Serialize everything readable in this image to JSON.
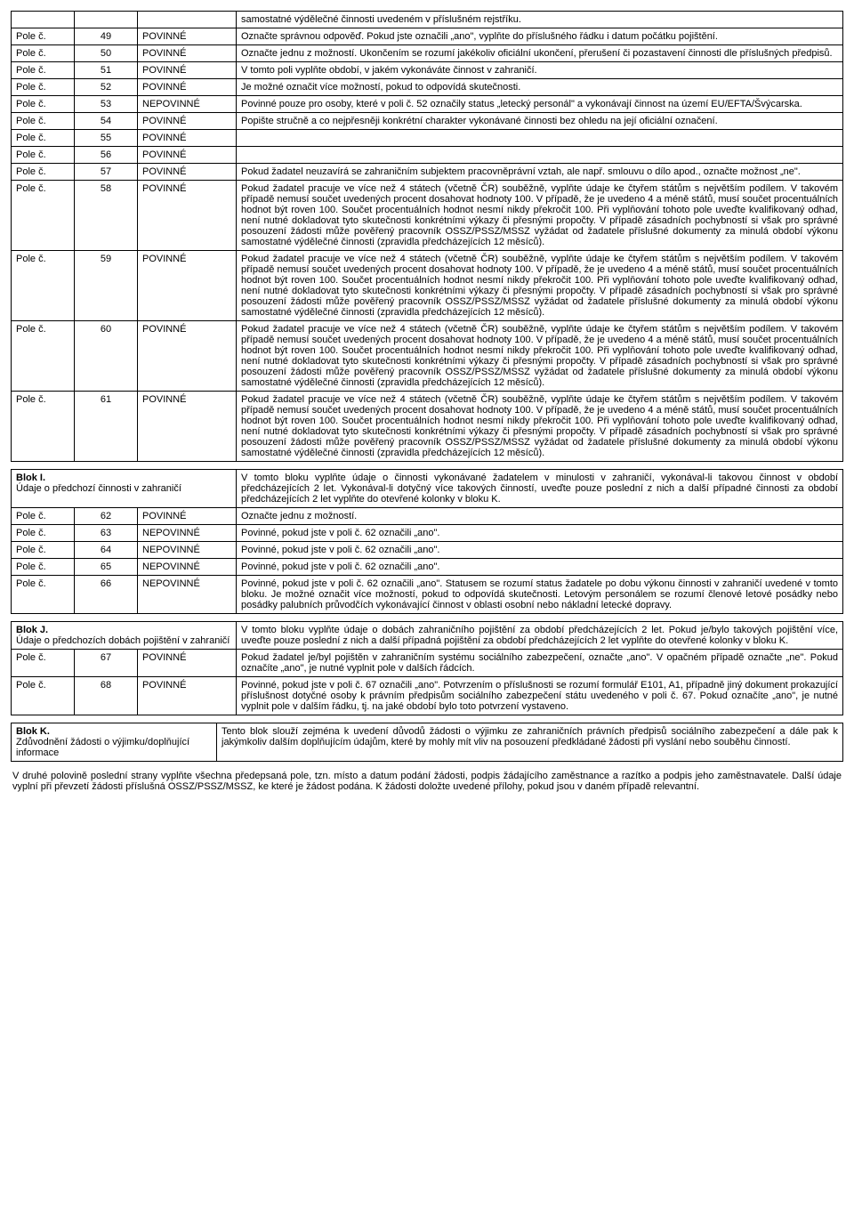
{
  "t1": {
    "rows": [
      {
        "a": "",
        "b": "",
        "c": "",
        "d": "samostatné výdělečné činnosti uvedeném v příslušném rejstříku."
      },
      {
        "a": "Pole č.",
        "b": "49",
        "c": "POVINNÉ",
        "d": "Označte správnou odpověď. Pokud jste označili „ano\", vyplňte do příslušného řádku i datum počátku pojištění."
      },
      {
        "a": "Pole č.",
        "b": "50",
        "c": "POVINNÉ",
        "d": "Označte jednu z možností. Ukončením se rozumí jakékoliv oficiální ukončení, přerušení či pozastavení činnosti dle příslušných předpisů."
      },
      {
        "a": "Pole č.",
        "b": "51",
        "c": "POVINNÉ",
        "d": "V tomto poli vyplňte období, v jakém vykonáváte činnost v zahraničí."
      },
      {
        "a": "Pole č.",
        "b": "52",
        "c": "POVINNÉ",
        "d": "Je možné označit více možností, pokud to odpovídá skutečnosti."
      },
      {
        "a": "Pole č.",
        "b": "53",
        "c": "NEPOVINNÉ",
        "d": "Povinné pouze pro osoby, které v poli č. 52 označily status „letecký personál\" a vykonávají činnost na území EU/EFTA/Švýcarska."
      },
      {
        "a": "Pole č.",
        "b": "54",
        "c": "POVINNÉ",
        "d": "Popište stručně a co nejpřesněji konkrétní charakter vykonávané činnosti bez ohledu na její oficiální označení."
      },
      {
        "a": "Pole č.",
        "b": "55",
        "c": "POVINNÉ",
        "d": ""
      },
      {
        "a": "Pole č.",
        "b": "56",
        "c": "POVINNÉ",
        "d": ""
      },
      {
        "a": "Pole č.",
        "b": "57",
        "c": "POVINNÉ",
        "d": "Pokud žadatel neuzavírá se zahraničním subjektem pracovněprávní vztah, ale např. smlouvu o dílo apod., označte možnost „ne\"."
      },
      {
        "a": "Pole č.",
        "b": "58",
        "c": "POVINNÉ",
        "d": "Pokud žadatel pracuje ve více než 4 státech (včetně ČR) souběžně, vyplňte údaje ke čtyřem státům s největším podílem. V takovém případě nemusí součet uvedených procent dosahovat hodnoty 100. V případě, že je uvedeno 4 a méně států, musí součet procentuálních hodnot být roven 100. Součet procentuálních hodnot nesmí nikdy překročit 100. Při vyplňování tohoto pole uveďte kvalifikovaný odhad, není nutné dokladovat tyto skutečnosti konkrétními výkazy či přesnými propočty. V případě zásadních pochybností si však pro správné posouzení žádosti může pověřený pracovník OSSZ/PSSZ/MSSZ vyžádat od žadatele příslušné dokumenty za minulá období výkonu samostatné výdělečné činnosti (zpravidla předcházejících 12 měsíců)."
      },
      {
        "a": "Pole č.",
        "b": "59",
        "c": "POVINNÉ",
        "d": "Pokud žadatel pracuje ve více než 4 státech (včetně ČR) souběžně, vyplňte údaje ke čtyřem státům s největším podílem. V takovém případě nemusí součet uvedených procent dosahovat hodnoty 100. V případě, že je uvedeno 4 a méně států, musí součet procentuálních hodnot být roven 100. Součet procentuálních hodnot nesmí nikdy překročit 100. Při vyplňování tohoto pole uveďte kvalifikovaný odhad, není nutné dokladovat tyto skutečnosti konkrétními výkazy či přesnými propočty. V případě zásadních pochybností si však pro správné posouzení žádosti může pověřený pracovník OSSZ/PSSZ/MSSZ vyžádat od žadatele příslušné dokumenty za minulá období výkonu samostatné výdělečné činnosti (zpravidla předcházejících 12 měsíců)."
      },
      {
        "a": "Pole č.",
        "b": "60",
        "c": "POVINNÉ",
        "d": "Pokud žadatel pracuje ve více než 4 státech (včetně ČR) souběžně, vyplňte údaje ke čtyřem státům s největším podílem. V takovém případě nemusí součet uvedených procent dosahovat hodnoty 100. V případě, že je uvedeno 4 a méně států, musí součet procentuálních hodnot být roven 100. Součet procentuálních hodnot nesmí nikdy překročit 100. Při vyplňování tohoto pole uveďte kvalifikovaný odhad, není nutné dokladovat tyto skutečnosti konkrétními výkazy či přesnými propočty. V případě zásadních pochybností si však pro správné posouzení žádosti může pověřený pracovník OSSZ/PSSZ/MSSZ vyžádat od žadatele příslušné dokumenty za minulá období výkonu samostatné výdělečné činnosti (zpravidla předcházejících 12 měsíců)."
      },
      {
        "a": "Pole č.",
        "b": "61",
        "c": "POVINNÉ",
        "d": "Pokud žadatel pracuje ve více než 4 státech (včetně ČR) souběžně, vyplňte údaje ke čtyřem státům s největším podílem. V takovém případě nemusí součet uvedených procent dosahovat hodnoty 100. V případě, že je uvedeno 4 a méně států, musí součet procentuálních hodnot být roven 100. Součet procentuálních hodnot nesmí nikdy překročit 100. Při vyplňování tohoto pole uveďte kvalifikovaný odhad, není nutné dokladovat tyto skutečnosti konkrétními výkazy či přesnými propočty. V případě zásadních pochybností si však pro správné posouzení žádosti může pověřený pracovník OSSZ/PSSZ/MSSZ vyžádat od žadatele příslušné dokumenty za minulá období výkonu samostatné výdělečné činnosti (zpravidla předcházejících 12 měsíců)."
      }
    ]
  },
  "t2": {
    "head_title": "Blok I.",
    "head_sub": "Údaje o předchozí činnosti v zahraničí",
    "head_desc": "V tomto bloku vyplňte údaje o činnosti vykonávané žadatelem v minulosti v zahraničí, vykonával-li takovou činnost v období předcházejících 2 let. Vykonával-li dotyčný více takových činností, uveďte pouze poslední z nich a další případné činnosti za období předcházejících 2 let vyplňte do otevřené kolonky v bloku K.",
    "rows": [
      {
        "a": "Pole č.",
        "b": "62",
        "c": "POVINNÉ",
        "d": "Označte jednu z možností."
      },
      {
        "a": "Pole č.",
        "b": "63",
        "c": "NEPOVINNÉ",
        "d": "Povinné, pokud jste v poli č. 62 označili „ano\"."
      },
      {
        "a": "Pole č.",
        "b": "64",
        "c": "NEPOVINNÉ",
        "d": "Povinné, pokud jste v poli č. 62 označili „ano\"."
      },
      {
        "a": "Pole č.",
        "b": "65",
        "c": "NEPOVINNÉ",
        "d": "Povinné, pokud jste v poli č. 62 označili „ano\"."
      },
      {
        "a": "Pole č.",
        "b": "66",
        "c": "NEPOVINNÉ",
        "d": "Povinné, pokud jste v poli č. 62 označili „ano\". Statusem se rozumí status žadatele po dobu výkonu činnosti v zahraničí uvedené v tomto bloku. Je možné označit více možností, pokud to odpovídá skutečnosti. Letovým personálem se rozumí členové letové posádky nebo posádky palubních průvodčích vykonávající činnost v oblasti osobní nebo nákladní letecké dopravy."
      }
    ]
  },
  "t3": {
    "head_title": "Blok J.",
    "head_sub": "Údaje o předchozích dobách pojištění v zahraničí",
    "head_desc": "V tomto bloku vyplňte údaje o dobách zahraničního pojištění za období předcházejících 2 let. Pokud je/bylo takových pojištění více, uveďte pouze poslední z nich a další případná pojištění za období předcházejících 2 let vyplňte do otevřené kolonky v bloku K.",
    "rows": [
      {
        "a": "Pole č.",
        "b": "67",
        "c": "POVINNÉ",
        "d": "Pokud žadatel je/byl pojištěn v zahraničním systému sociálního zabezpečení, označte „ano\". V opačném případě označte „ne\". Pokud označíte „ano\", je nutné vyplnit pole v dalších řádcích."
      },
      {
        "a": "Pole č.",
        "b": "68",
        "c": "POVINNÉ",
        "d": "Povinné, pokud jste v poli č. 67 označili „ano\". Potvrzením o příslušnosti se rozumí formulář E101, A1, případně jiný dokument prokazující příslušnost dotyčné osoby k právním předpisům sociálního zabezpečení státu uvedeného v poli č. 67. Pokud označíte „ano\", je nutné vyplnit pole v dalším řádku, tj. na jaké období bylo toto potvrzení vystaveno."
      }
    ]
  },
  "t4": {
    "head_title": "Blok K.",
    "head_sub": "Zdůvodnění žádosti o výjimku/doplňující informace",
    "head_desc": "Tento blok slouží zejména k uvedení důvodů žádosti o výjimku ze zahraničních právních předpisů sociálního zabezpečení a dále pak k jakýmkoliv dalším doplňujícím údajům, které by mohly mít vliv na posouzení předkládané žádosti při vyslání nebo souběhu činností."
  },
  "footer": "V druhé polovině poslední strany vyplňte všechna předepsaná pole, tzn. místo a datum podání žádosti, podpis žádajícího zaměstnance a razítko a podpis jeho zaměstnavatele. Další údaje vyplní při převzetí žádosti příslušná OSSZ/PSSZ/MSSZ, ke které je žádost podána. K žádosti doložte uvedené přílohy, pokud jsou v daném případě relevantní."
}
